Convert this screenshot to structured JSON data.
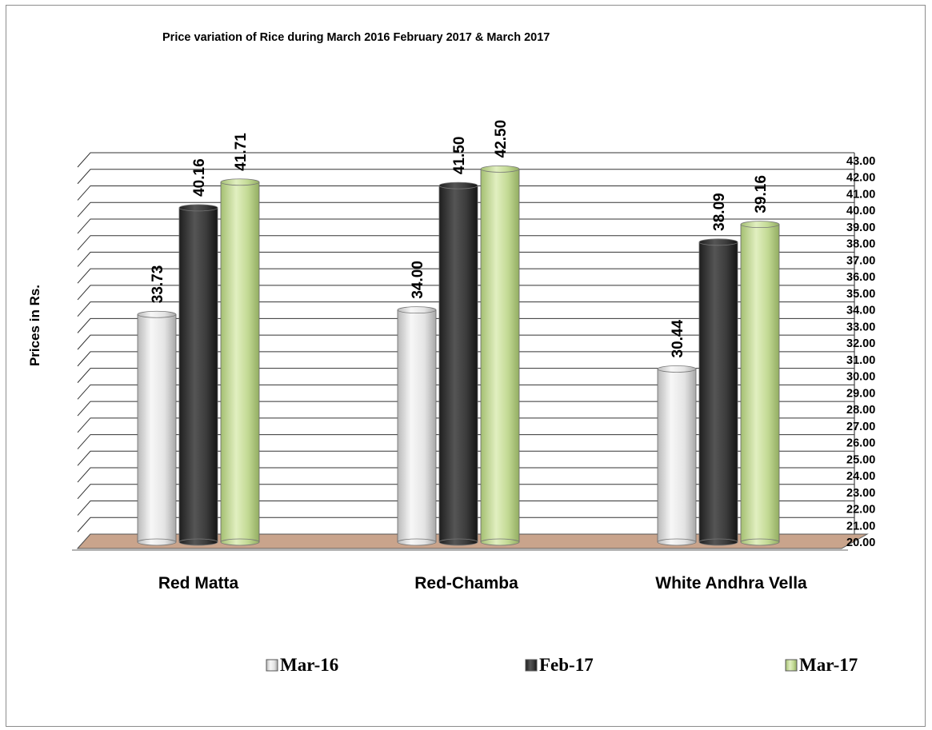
{
  "chart_data": {
    "type": "bar",
    "title": "Price variation of Rice during  March  2016  February  2017 &  March 2017",
    "xlabel": "",
    "ylabel": "Prices in Rs.",
    "ylim": [
      20,
      43
    ],
    "ytick_step": 1,
    "y_axis_side": "right",
    "categories": [
      "Red Matta",
      "Red-Chamba",
      "White Andhra Vella"
    ],
    "series": [
      {
        "name": "Mar-16",
        "values": [
          33.73,
          34.0,
          30.44
        ],
        "labels": [
          "33.73",
          "34.00",
          "30.44"
        ],
        "color": "#e4e4e4"
      },
      {
        "name": "Feb-17",
        "values": [
          40.16,
          41.5,
          38.09
        ],
        "labels": [
          "40.16",
          "41.50",
          "38.09"
        ],
        "color": "#3c3c3c"
      },
      {
        "name": "Mar-17",
        "values": [
          41.71,
          42.5,
          39.16
        ],
        "labels": [
          "41.71",
          "42.50",
          "39.16"
        ],
        "color": "#c3da95"
      }
    ],
    "grid": true,
    "legend_position": "bottom",
    "floor_color": "#c9a48c"
  }
}
